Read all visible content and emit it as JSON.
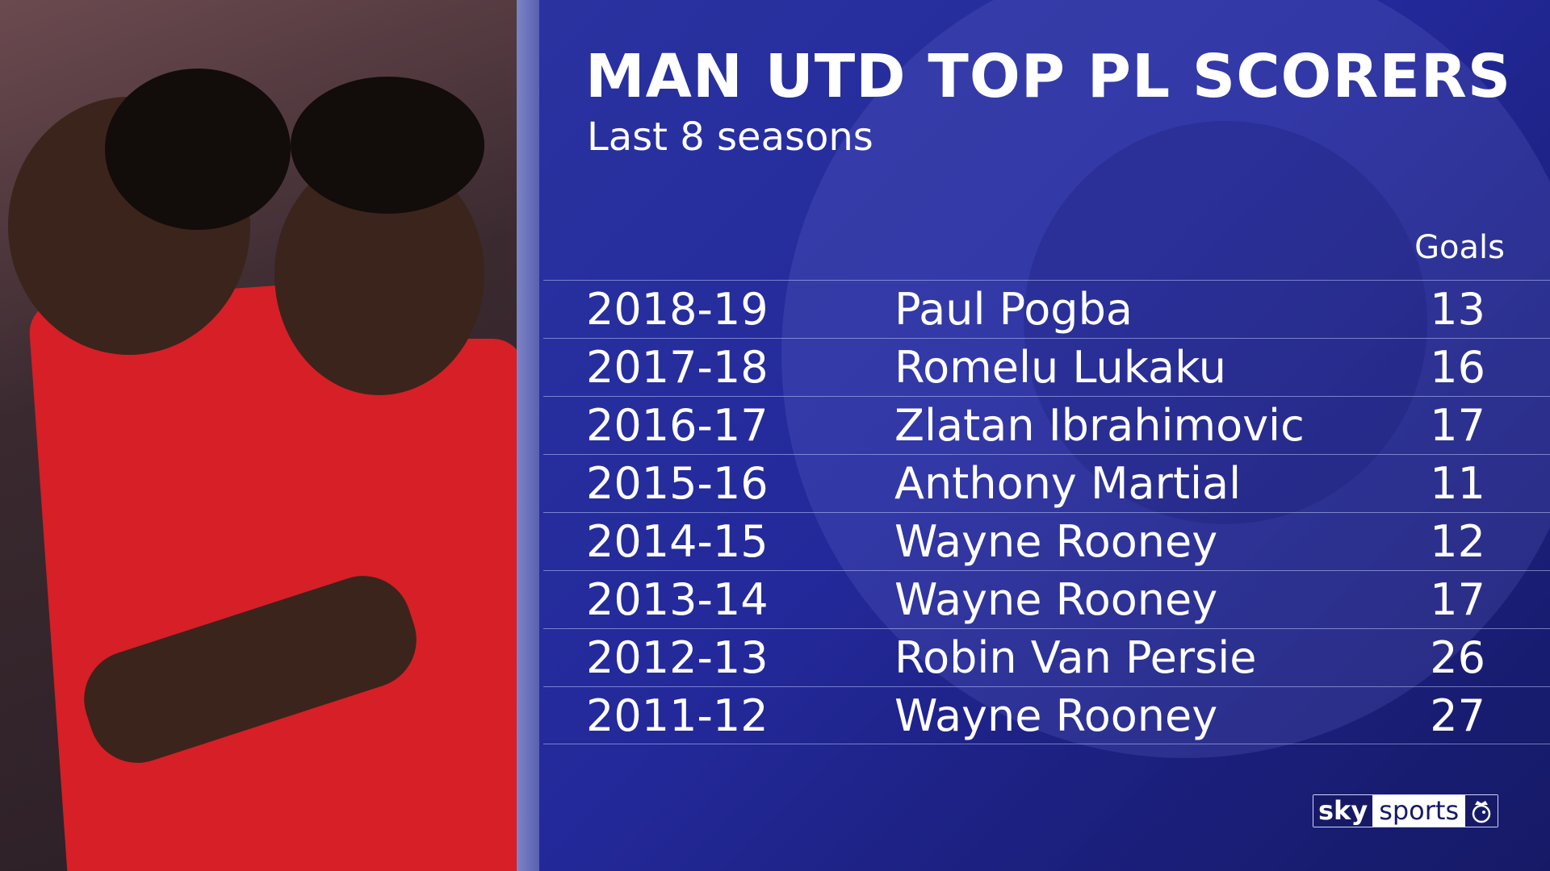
{
  "header": {
    "title": "MAN UTD TOP PL SCORERS",
    "subtitle": "Last 8 seasons"
  },
  "table": {
    "column_goals": "Goals",
    "rows": [
      {
        "season": "2018-19",
        "player": "Paul Pogba",
        "goals": "13"
      },
      {
        "season": "2017-18",
        "player": "Romelu Lukaku",
        "goals": "16"
      },
      {
        "season": "2016-17",
        "player": "Zlatan Ibrahimovic",
        "goals": "17"
      },
      {
        "season": "2015-16",
        "player": "Anthony Martial",
        "goals": "11"
      },
      {
        "season": "2014-15",
        "player": "Wayne Rooney",
        "goals": "12"
      },
      {
        "season": "2013-14",
        "player": "Wayne Rooney",
        "goals": "17"
      },
      {
        "season": "2012-13",
        "player": "Robin Van Persie",
        "goals": "26"
      },
      {
        "season": "2011-12",
        "player": "Wayne Rooney",
        "goals": "27"
      }
    ]
  },
  "logo": {
    "sky": "sky",
    "sports": "sports",
    "icon": "premier-league-lion-icon"
  },
  "colors": {
    "panel": "#23299a",
    "shirt": "#d61f26"
  }
}
